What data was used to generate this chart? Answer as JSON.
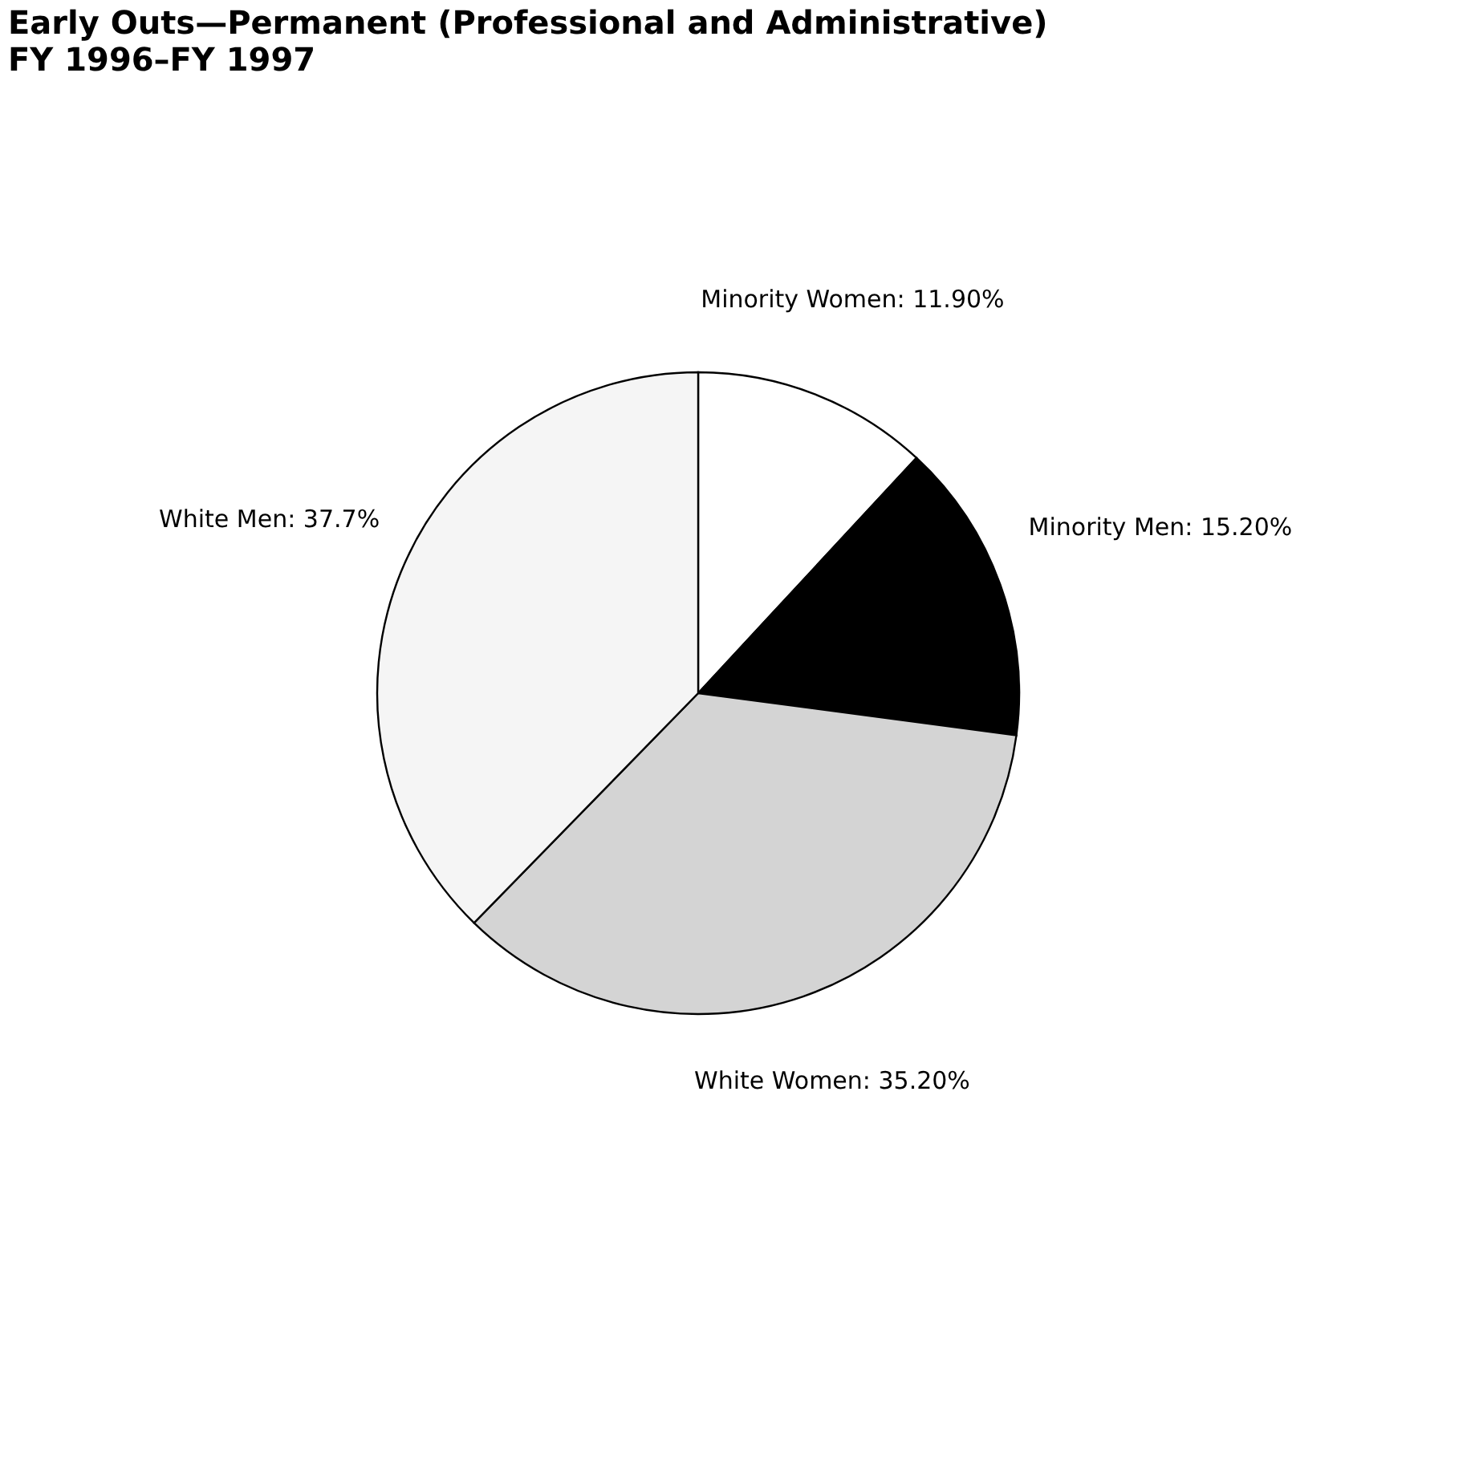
{
  "chart_data": {
    "type": "pie",
    "title": "Early Outs—Permanent (Professional and Administrative)",
    "subtitle": "FY 1996–FY 1997",
    "categories": [
      "Minority Women",
      "Minority Men",
      "White Women",
      "White Men"
    ],
    "values": [
      11.9,
      15.2,
      35.2,
      37.7
    ],
    "value_labels": [
      "11.90%",
      "15.20%",
      "35.20%",
      "37.7%"
    ],
    "colors": [
      "#ffffff",
      "#000000",
      "#d4d4d4",
      "#f5f5f5"
    ],
    "legend": false
  }
}
